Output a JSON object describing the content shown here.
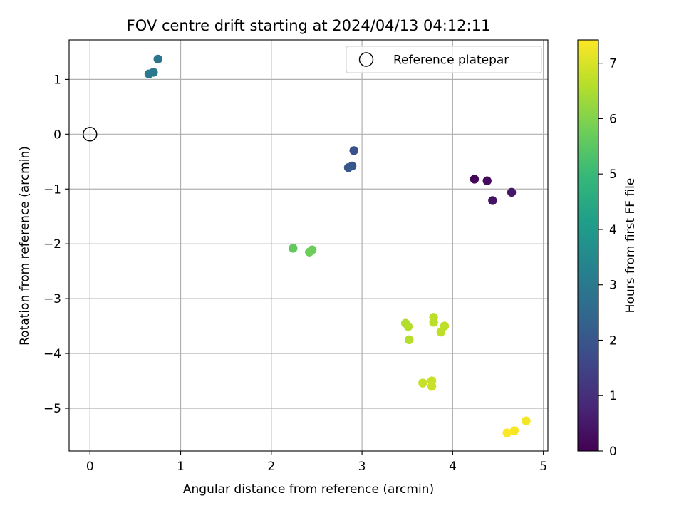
{
  "chart_data": {
    "type": "scatter",
    "title": "FOV centre drift starting at 2024/04/13 04:12:11",
    "xlabel": "Angular distance from reference (arcmin)",
    "ylabel": "Rotation from reference (arcmin)",
    "xlim": [
      -0.23,
      5.05
    ],
    "ylim": [
      -5.78,
      1.72
    ],
    "x_ticks": [
      0,
      1,
      2,
      3,
      4,
      5
    ],
    "x_tick_labels": [
      "0",
      "1",
      "2",
      "3",
      "4",
      "5"
    ],
    "y_ticks": [
      1,
      0,
      -1,
      -2,
      -3,
      -4,
      -5
    ],
    "y_tick_labels": [
      "1",
      "0",
      "−1",
      "−2",
      "−3",
      "−4",
      "−5"
    ],
    "grid": true,
    "legend": {
      "placement": "top-right",
      "entries": [
        {
          "label": "Reference platepar",
          "marker": "open-circle"
        }
      ]
    },
    "reference_point": {
      "x": 0,
      "y": 0
    },
    "colorbar": {
      "label": "Hours from first FF file",
      "range": [
        0,
        7.42
      ],
      "ticks": [
        0,
        1,
        2,
        3,
        4,
        5,
        6,
        7
      ],
      "tick_labels": [
        "0",
        "1",
        "2",
        "3",
        "4",
        "5",
        "6",
        "7"
      ],
      "colormap": "viridis",
      "colormap_stops": [
        "#440154",
        "#482878",
        "#3e4989",
        "#31688e",
        "#26828e",
        "#1f9e89",
        "#35b779",
        "#6ece58",
        "#b5de2b",
        "#fde725"
      ]
    },
    "points": [
      {
        "x": 4.24,
        "y": -0.82,
        "c": 0.1
      },
      {
        "x": 4.38,
        "y": -0.85,
        "c": 0.2
      },
      {
        "x": 4.44,
        "y": -1.21,
        "c": 0.35
      },
      {
        "x": 4.65,
        "y": -1.06,
        "c": 0.45
      },
      {
        "x": 2.91,
        "y": -0.3,
        "c": 1.9
      },
      {
        "x": 2.89,
        "y": -0.58,
        "c": 2.0
      },
      {
        "x": 2.85,
        "y": -0.61,
        "c": 2.05
      },
      {
        "x": 0.75,
        "y": 1.37,
        "c": 2.9
      },
      {
        "x": 0.7,
        "y": 1.13,
        "c": 2.95
      },
      {
        "x": 0.65,
        "y": 1.1,
        "c": 3.0
      },
      {
        "x": 2.24,
        "y": -2.08,
        "c": 5.6
      },
      {
        "x": 2.45,
        "y": -2.11,
        "c": 5.7
      },
      {
        "x": 2.42,
        "y": -2.15,
        "c": 5.75
      },
      {
        "x": 3.48,
        "y": -3.45,
        "c": 6.55
      },
      {
        "x": 3.51,
        "y": -3.51,
        "c": 6.6
      },
      {
        "x": 3.52,
        "y": -3.75,
        "c": 6.6
      },
      {
        "x": 3.79,
        "y": -3.34,
        "c": 6.65
      },
      {
        "x": 3.79,
        "y": -3.43,
        "c": 6.65
      },
      {
        "x": 3.91,
        "y": -3.5,
        "c": 6.7
      },
      {
        "x": 3.87,
        "y": -3.61,
        "c": 6.7
      },
      {
        "x": 3.67,
        "y": -4.54,
        "c": 6.8
      },
      {
        "x": 3.77,
        "y": -4.5,
        "c": 6.8
      },
      {
        "x": 3.77,
        "y": -4.6,
        "c": 6.85
      },
      {
        "x": 4.81,
        "y": -5.23,
        "c": 7.3
      },
      {
        "x": 4.68,
        "y": -5.41,
        "c": 7.35
      },
      {
        "x": 4.6,
        "y": -5.45,
        "c": 7.4
      }
    ]
  }
}
